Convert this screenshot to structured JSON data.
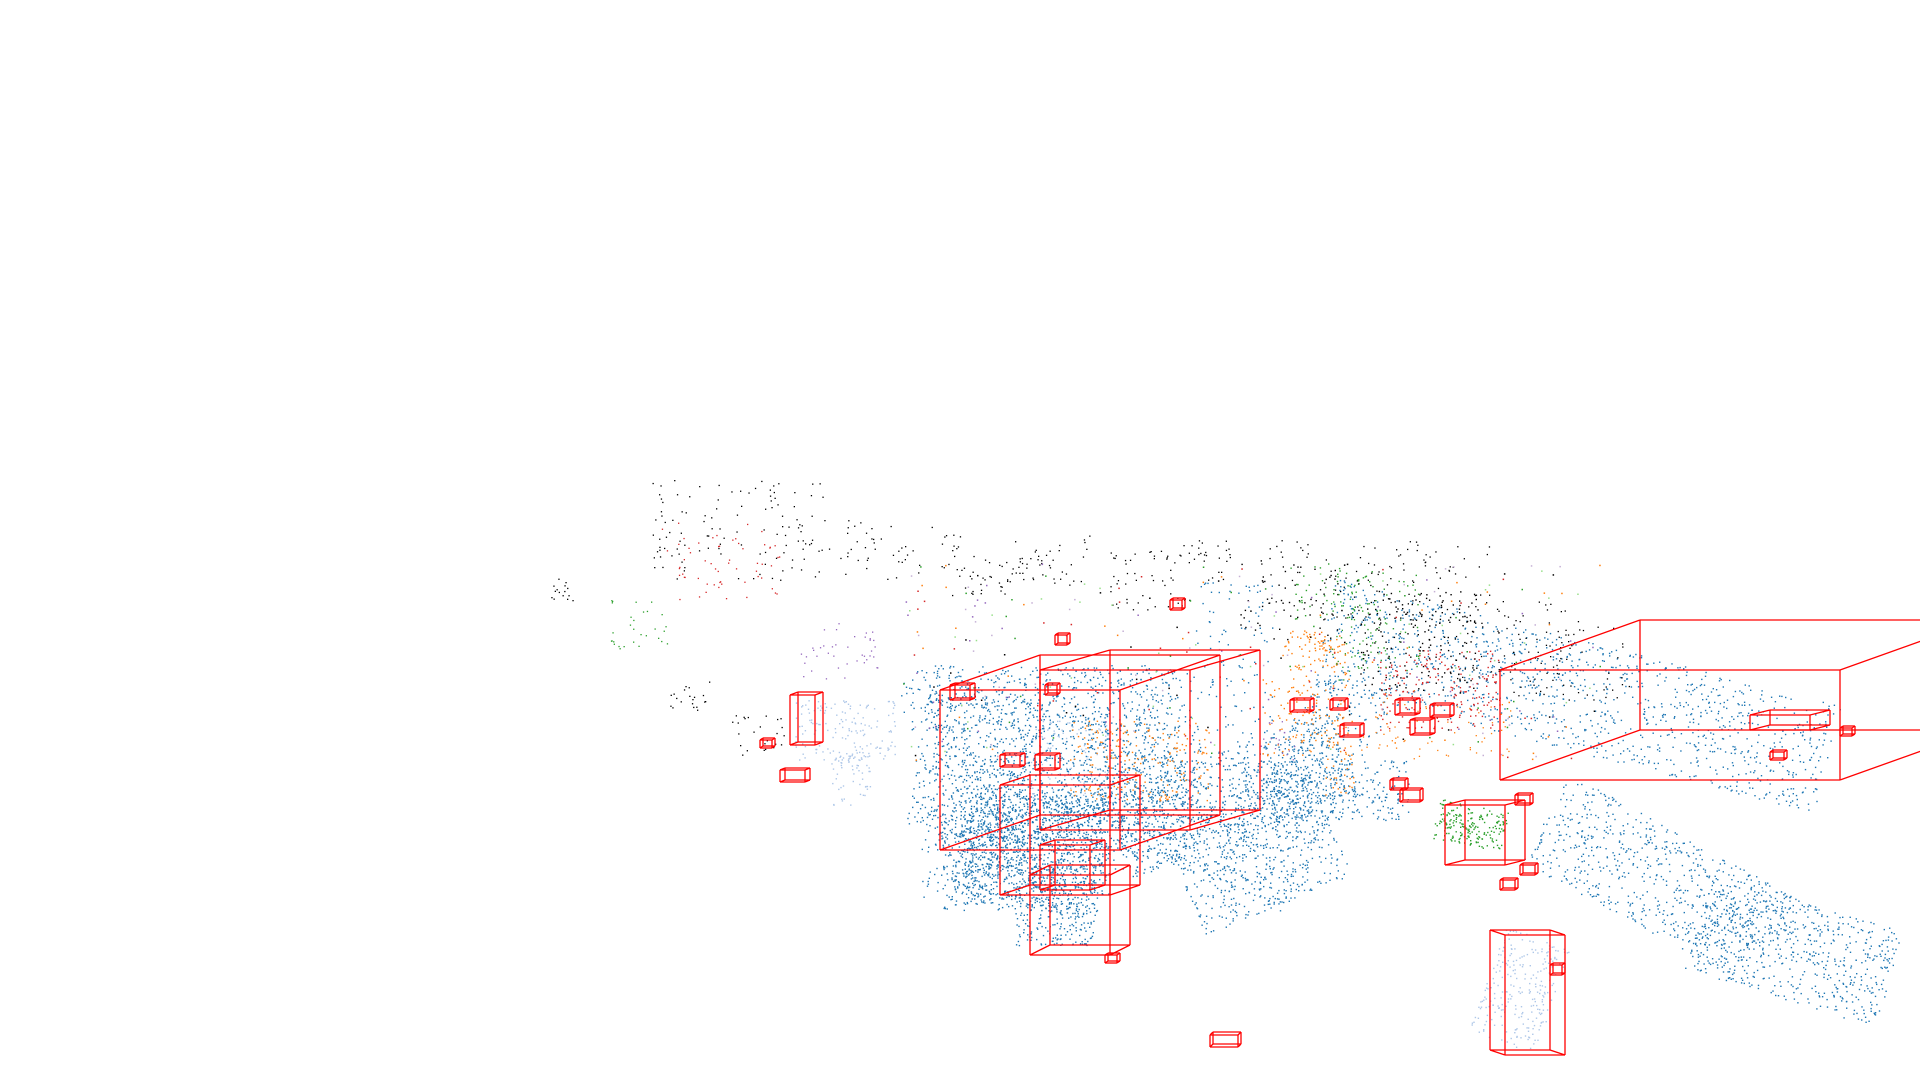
{
  "scene": {
    "kind": "3d-point-cloud-with-bounding-boxes",
    "background": "#ffffff",
    "box_color": "#ff0000",
    "palette": [
      "#1f77b4",
      "#aec7e8",
      "#ff7f0e",
      "#2ca02c",
      "#d62728",
      "#000000",
      "#9467bd",
      "#c5b0d5",
      "#98df8a"
    ]
  }
}
